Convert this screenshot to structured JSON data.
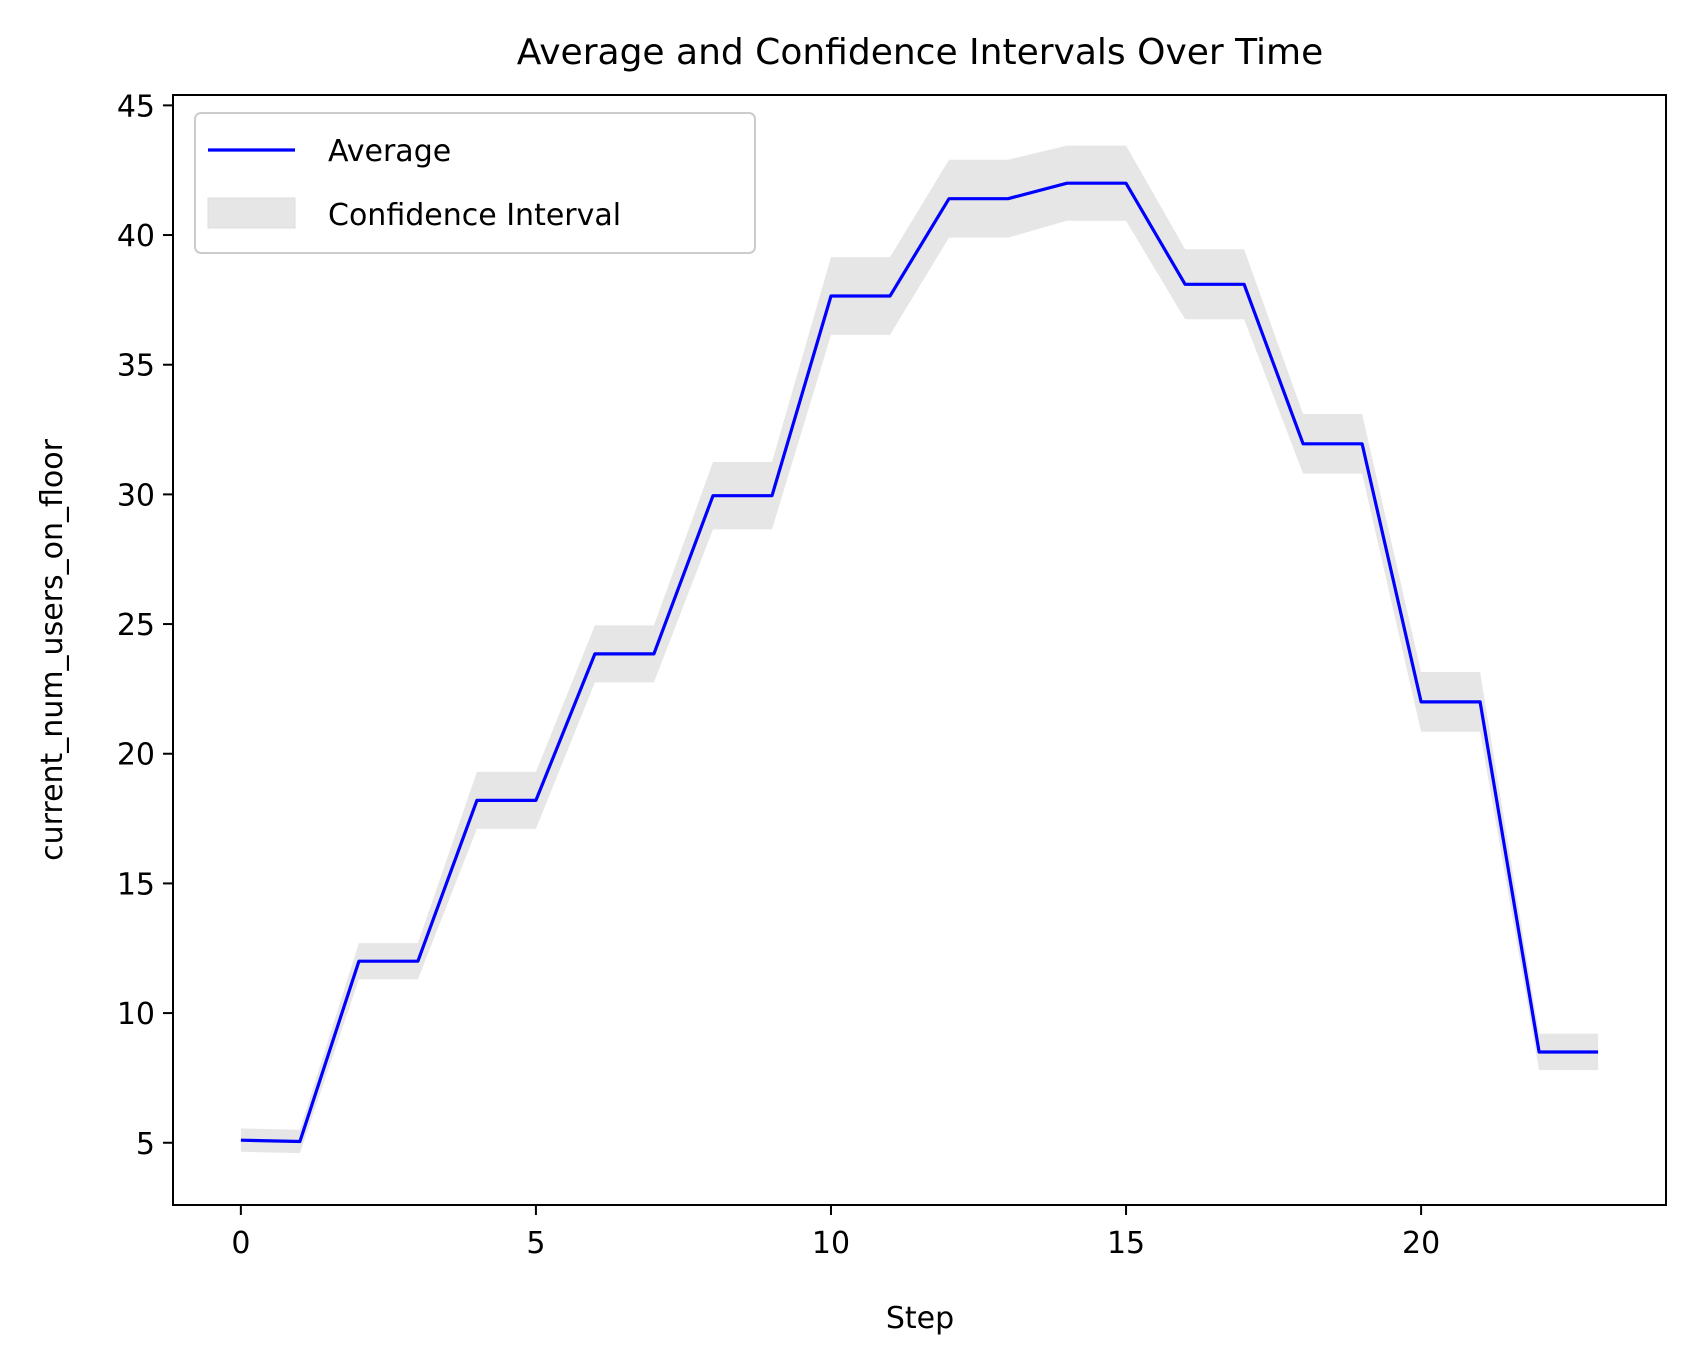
{
  "chart_data": {
    "type": "line",
    "title": "Average and Confidence Intervals Over Time",
    "xlabel": "Step",
    "ylabel": "current_num_users_on_floor",
    "xlim": [
      -1.15,
      24.15
    ],
    "ylim": [
      2.6,
      45.4
    ],
    "xticks": [
      0,
      5,
      10,
      15,
      20
    ],
    "yticks": [
      5,
      10,
      15,
      20,
      25,
      30,
      35,
      40,
      45
    ],
    "grid": false,
    "legend_position": "upper left",
    "series": [
      {
        "name": "Average",
        "color": "#0000ff",
        "x": [
          0,
          1,
          2,
          3,
          4,
          5,
          6,
          7,
          8,
          9,
          10,
          11,
          12,
          13,
          14,
          15,
          16,
          17,
          18,
          19,
          20,
          21,
          22,
          23
        ],
        "y": [
          5.1,
          5.05,
          12.0,
          12.0,
          18.2,
          18.2,
          23.85,
          23.85,
          29.95,
          29.95,
          37.65,
          37.65,
          41.4,
          41.4,
          42.0,
          42.0,
          38.1,
          38.1,
          31.95,
          31.95,
          22.0,
          22.0,
          8.5,
          8.5
        ]
      },
      {
        "name": "Confidence Interval",
        "color": "#e6e6e6",
        "x": [
          0,
          1,
          2,
          3,
          4,
          5,
          6,
          7,
          8,
          9,
          10,
          11,
          12,
          13,
          14,
          15,
          16,
          17,
          18,
          19,
          20,
          21,
          22,
          23
        ],
        "lower": [
          4.65,
          4.6,
          11.3,
          11.3,
          17.1,
          17.1,
          22.75,
          22.75,
          28.65,
          28.65,
          36.15,
          36.15,
          39.9,
          39.9,
          40.55,
          40.55,
          36.75,
          36.75,
          30.8,
          30.8,
          20.85,
          20.85,
          7.8,
          7.8
        ],
        "upper": [
          5.55,
          5.5,
          12.7,
          12.7,
          19.3,
          19.3,
          24.95,
          24.95,
          31.25,
          31.25,
          39.15,
          39.15,
          42.9,
          42.9,
          43.45,
          43.45,
          39.45,
          39.45,
          33.1,
          33.1,
          23.15,
          23.15,
          9.2,
          9.2
        ]
      }
    ]
  }
}
